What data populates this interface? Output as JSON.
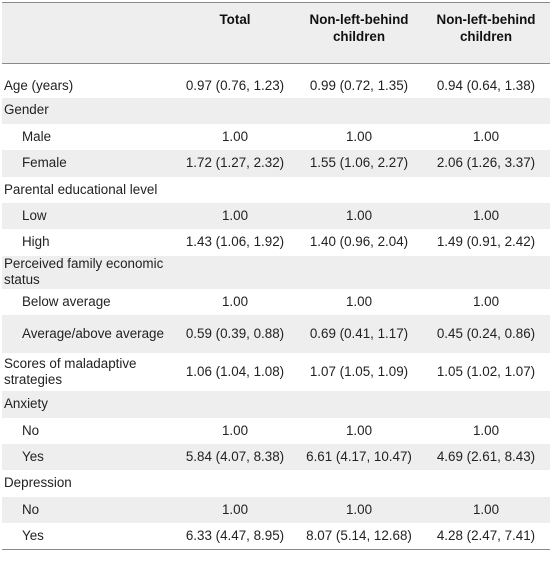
{
  "table": {
    "columns": [
      "",
      "Total",
      "Non-left-behind children",
      "Non-left-behind children"
    ],
    "rows": [
      {
        "label": "Age (years)",
        "indent": false,
        "values": [
          "0.97 (0.76, 1.23)",
          "0.99 (0.72, 1.35)",
          "0.94 (0.64, 1.38)"
        ]
      },
      {
        "label": "Gender",
        "indent": false,
        "values": [
          "",
          "",
          ""
        ]
      },
      {
        "label": "Male",
        "indent": true,
        "values": [
          "1.00",
          "1.00",
          "1.00"
        ]
      },
      {
        "label": "Female",
        "indent": true,
        "values": [
          "1.72 (1.27, 2.32)",
          "1.55 (1.06, 2.27)",
          "2.06 (1.26, 3.37)"
        ]
      },
      {
        "label": "Parental educational level",
        "indent": false,
        "values": [
          "",
          "",
          ""
        ]
      },
      {
        "label": "Low",
        "indent": true,
        "values": [
          "1.00",
          "1.00",
          "1.00"
        ]
      },
      {
        "label": "High",
        "indent": true,
        "values": [
          "1.43 (1.06, 1.92)",
          "1.40 (0.96, 2.04)",
          "1.49 (0.91, 2.42)"
        ]
      },
      {
        "label": "Perceived family economic status",
        "indent": false,
        "values": [
          "",
          "",
          ""
        ]
      },
      {
        "label": "Below average",
        "indent": true,
        "values": [
          "1.00",
          "1.00",
          "1.00"
        ]
      },
      {
        "label": "Average/above average",
        "indent": true,
        "values": [
          "0.59 (0.39, 0.88)",
          "0.69 (0.41, 1.17)",
          "0.45 (0.24, 0.86)"
        ]
      },
      {
        "label": "Scores of maladaptive strategies",
        "indent": false,
        "values": [
          "1.06 (1.04, 1.08)",
          "1.07 (1.05, 1.09)",
          "1.05 (1.02, 1.07)"
        ]
      },
      {
        "label": "Anxiety",
        "indent": false,
        "values": [
          "",
          "",
          ""
        ]
      },
      {
        "label": "No",
        "indent": true,
        "values": [
          "1.00",
          "1.00",
          "1.00"
        ]
      },
      {
        "label": "Yes",
        "indent": true,
        "values": [
          "5.84 (4.07, 8.38)",
          "6.61 (4.17, 10.47)",
          "4.69 (2.61, 8.43)"
        ]
      },
      {
        "label": "Depression",
        "indent": false,
        "values": [
          "",
          "",
          ""
        ]
      },
      {
        "label": "No",
        "indent": true,
        "values": [
          "1.00",
          "1.00",
          "1.00"
        ]
      },
      {
        "label": "Yes",
        "indent": true,
        "values": [
          "6.33 (4.47, 8.95)",
          "8.07 (5.14, 12.68)",
          "4.28 (2.47, 7.41)"
        ]
      }
    ]
  }
}
